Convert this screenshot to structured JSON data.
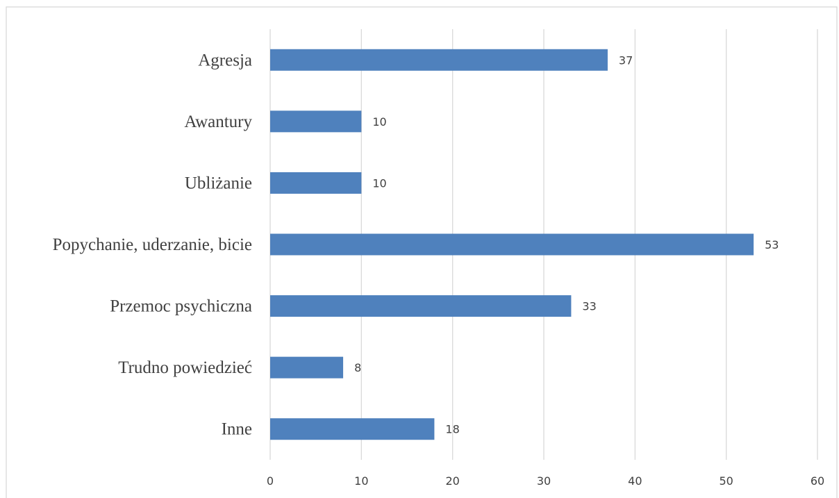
{
  "chart_data": {
    "type": "bar",
    "orientation": "horizontal",
    "categories": [
      "Agresja",
      "Awantury",
      "Ubliżanie",
      "Popychanie, uderzanie, bicie",
      "Przemoc psychiczna",
      "Trudno powiedzieć",
      "Inne"
    ],
    "values": [
      37,
      10,
      10,
      53,
      33,
      8,
      18
    ],
    "xlim": [
      0,
      60
    ],
    "xticks": [
      0,
      10,
      20,
      30,
      40,
      50,
      60
    ],
    "grid": true,
    "data_labels": true,
    "bar_color": "#4f81bd",
    "grid_color": "#d9d9d9",
    "text_color": "#404040"
  }
}
